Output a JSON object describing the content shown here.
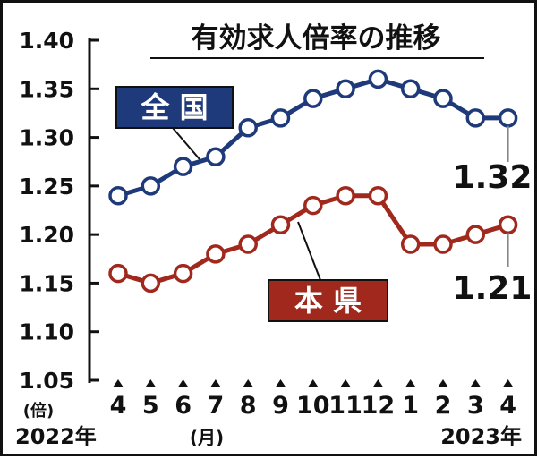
{
  "chart_data": {
    "type": "line",
    "title": "有効求人倍率の推移",
    "ylim": [
      1.05,
      1.4
    ],
    "yticks": [
      "1.40",
      "1.35",
      "1.30",
      "1.25",
      "1.20",
      "1.15",
      "1.10",
      "1.05"
    ],
    "y_unit": "(倍)",
    "x_unit": "(月)",
    "categories": [
      "4",
      "5",
      "6",
      "7",
      "8",
      "9",
      "10",
      "11",
      "12",
      "1",
      "2",
      "3",
      "4"
    ],
    "year_labels": {
      "start": "2022年",
      "end": "2023年"
    },
    "grid": false,
    "series": [
      {
        "name": "全 国",
        "color": "#1f3a7a",
        "values": [
          1.24,
          1.25,
          1.27,
          1.28,
          1.31,
          1.32,
          1.34,
          1.35,
          1.36,
          1.35,
          1.34,
          1.32,
          1.32
        ],
        "end_label": "1.32"
      },
      {
        "name": "本 県",
        "color": "#a1281c",
        "values": [
          1.16,
          1.15,
          1.16,
          1.18,
          1.19,
          1.21,
          1.23,
          1.24,
          1.24,
          1.19,
          1.19,
          1.2,
          1.21
        ],
        "end_label": "1.21"
      }
    ]
  }
}
